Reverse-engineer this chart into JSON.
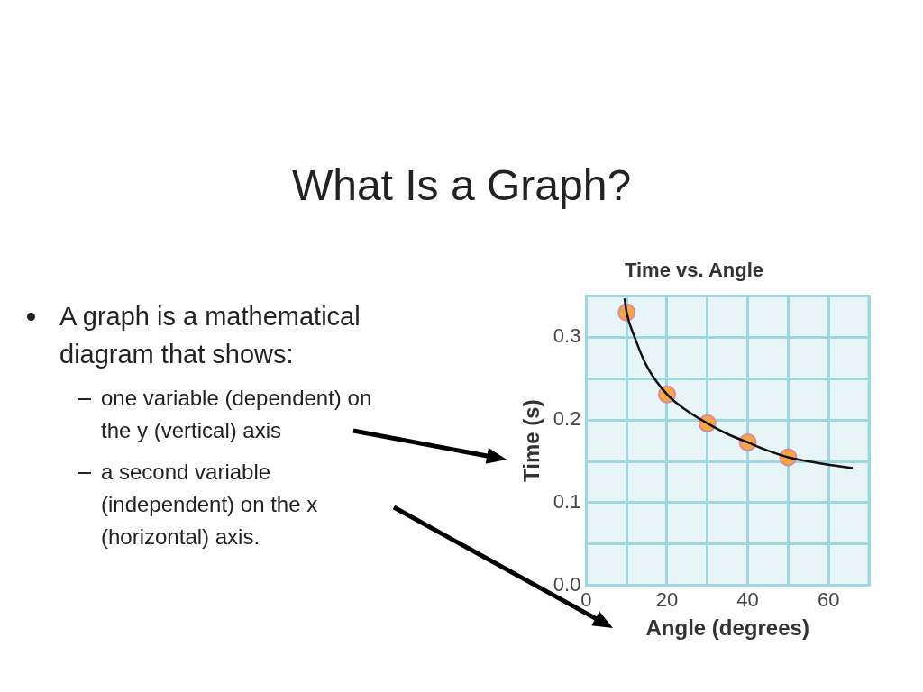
{
  "chart_data": {
    "type": "scatter",
    "title": "Time vs. Angle",
    "xlabel": "Angle (degrees)",
    "ylabel": "Time (s)",
    "annotations": [
      "What Is a Graph?",
      "A graph is a mathematical diagram that shows:",
      "one variable (dependent) on the y (vertical) axis",
      "a second variable (independent) on the x (horizontal) axis."
    ],
    "xlim": [
      0,
      70
    ],
    "xticks": [
      0,
      {
        "value": 10,
        "label": null
      },
      20,
      {
        "value": 30,
        "label": null
      },
      40,
      {
        "value": 50,
        "label": null
      },
      60,
      {
        "value": 70,
        "label": null
      }
    ],
    "ylim": [
      0,
      0.35
    ],
    "yticks": [
      {
        "value": 0,
        "label": "0.0"
      },
      {
        "value": 0.05,
        "label": null
      },
      0.1,
      {
        "value": 0.15,
        "label": null
      },
      0.2,
      {
        "value": 0.25,
        "label": null
      },
      0.3,
      {
        "value": 0.35,
        "label": null
      }
    ],
    "grid": true,
    "series": [
      {
        "type": "line",
        "marker": "none",
        "color": "#111111",
        "x": [
          9.5,
          10,
          12,
          15,
          20,
          25,
          30,
          35,
          40,
          45,
          50,
          55,
          60,
          66
        ],
        "values": [
          0.347,
          0.33,
          0.3,
          0.265,
          0.231,
          0.211,
          0.196,
          0.183,
          0.173,
          0.163,
          0.155,
          0.15,
          0.146,
          0.142
        ]
      },
      {
        "type": "scatter",
        "marker": "circle",
        "color": "#f5a742",
        "x": [
          10,
          20,
          30,
          40,
          50
        ],
        "values": [
          0.33,
          0.231,
          0.196,
          0.173,
          0.155
        ]
      }
    ]
  }
}
